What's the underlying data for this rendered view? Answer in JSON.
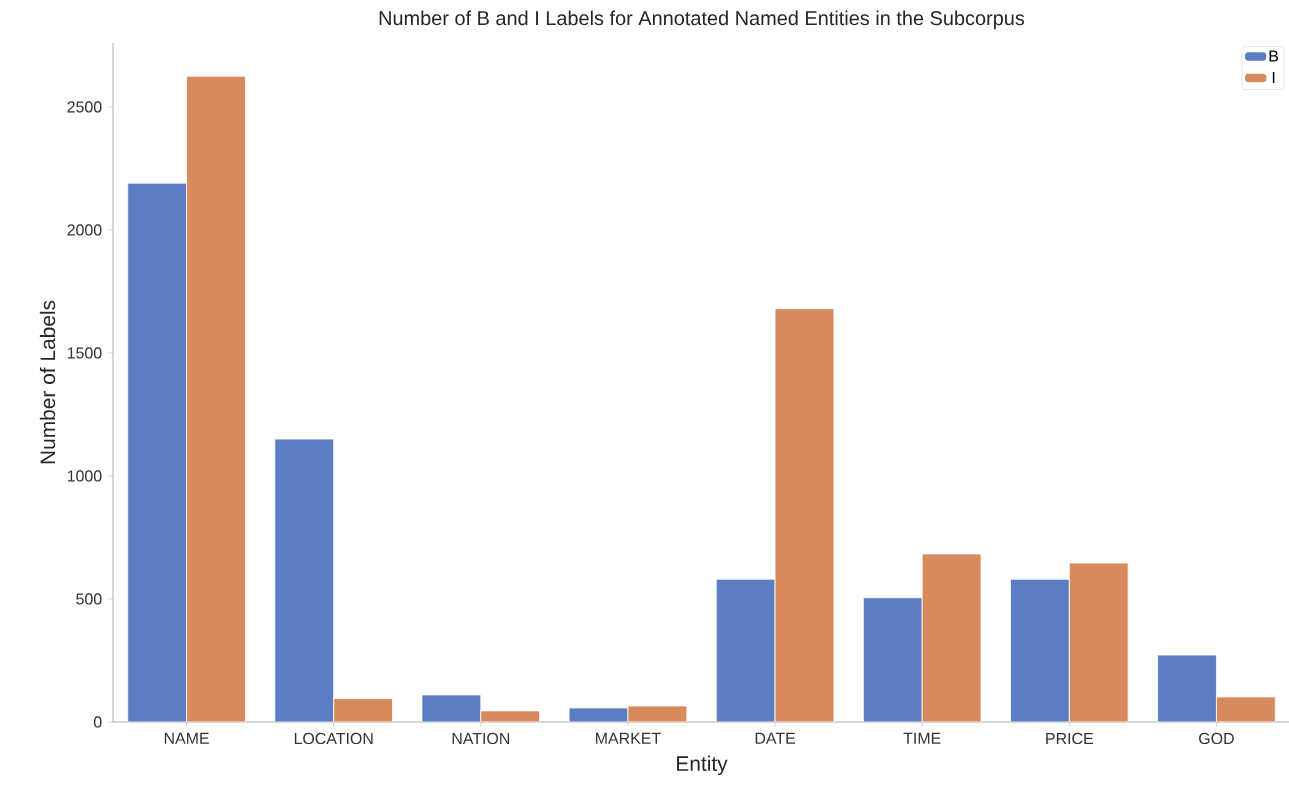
{
  "chart_data": {
    "type": "bar",
    "title": "Number of B and I Labels for Annotated Named Entities in the Subcorpus",
    "xlabel": "Entity",
    "ylabel": "Number of Labels",
    "categories": [
      "NAME",
      "LOCATION",
      "NATION",
      "MARKET",
      "DATE",
      "TIME",
      "PRICE",
      "GOD"
    ],
    "series": [
      {
        "name": "B",
        "color": "#5a7ec1",
        "values": [
          2190,
          1150,
          110,
          57,
          580,
          505,
          580,
          272
        ]
      },
      {
        "name": "I",
        "color": "#d98a5c",
        "values": [
          2625,
          95,
          45,
          65,
          1680,
          683,
          646,
          102
        ]
      }
    ],
    "ylim": [
      0,
      2760
    ],
    "yticks": [
      0,
      500,
      1000,
      1500,
      2000,
      2500
    ],
    "grid": false,
    "legend": "top right"
  }
}
